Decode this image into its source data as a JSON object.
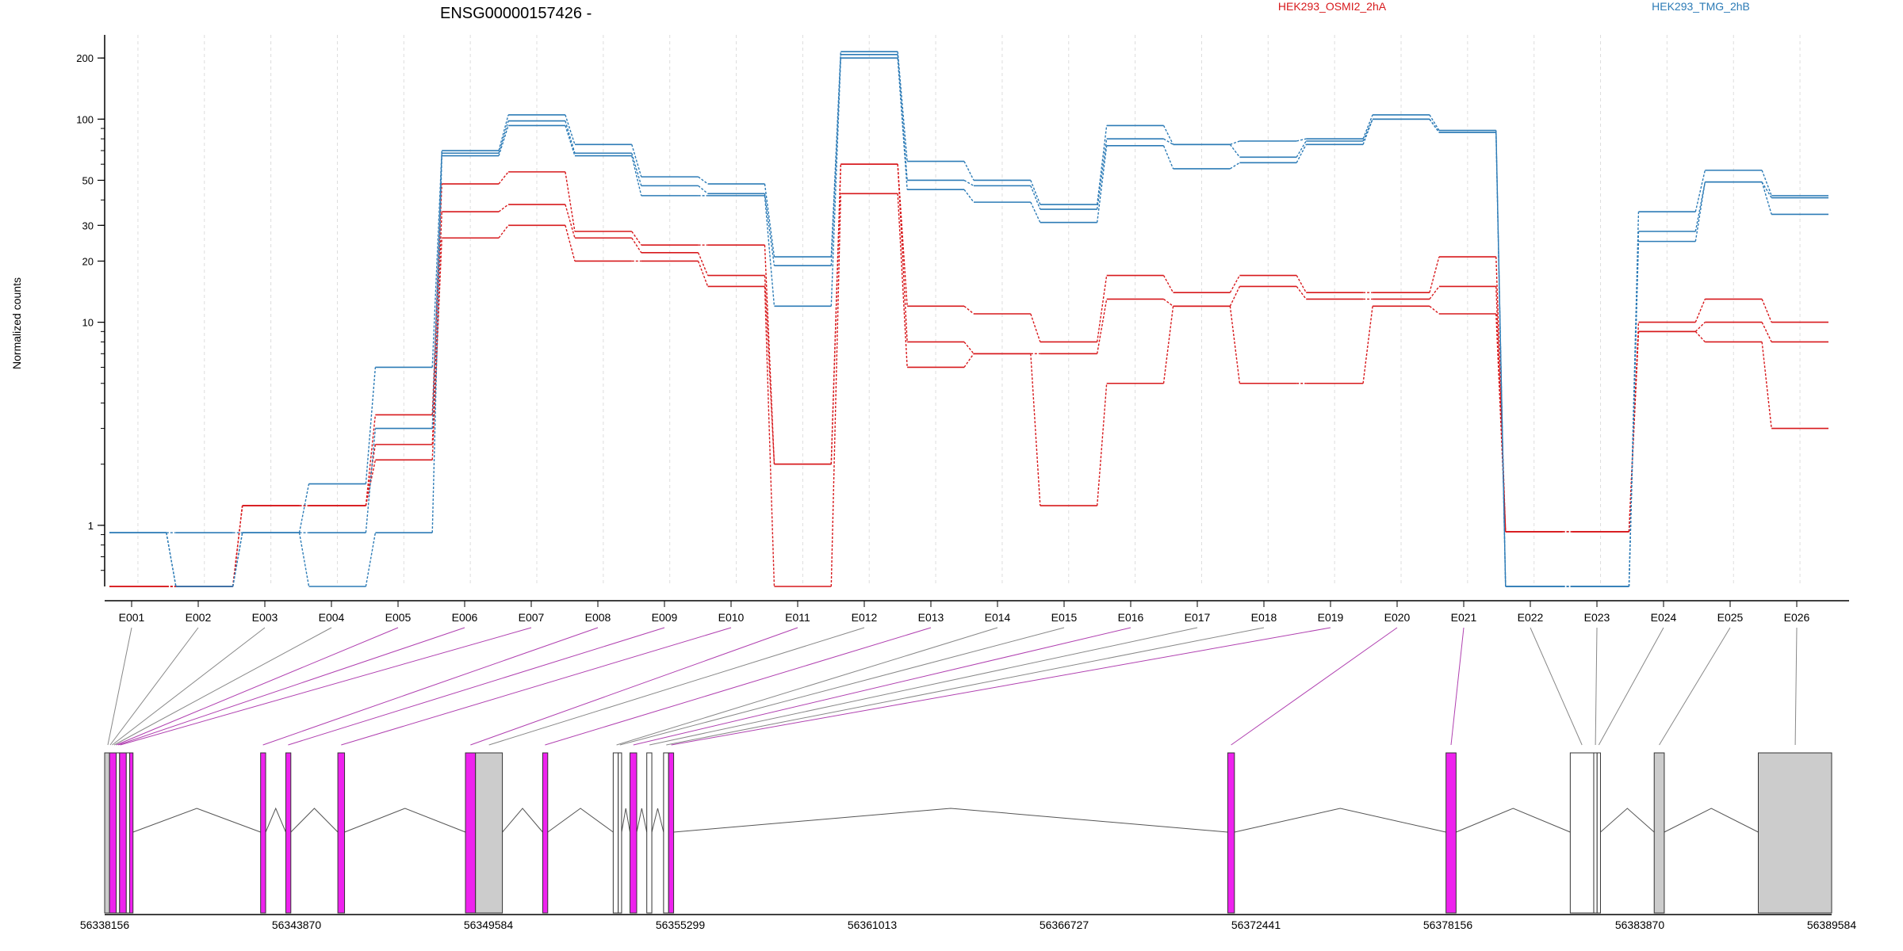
{
  "chart_data": {
    "type": "line",
    "title": "ENSG00000157426 -",
    "ylabel": "Normalized counts",
    "yscale": "log",
    "ylim": [
      0.5,
      260
    ],
    "yticks": [
      1,
      10,
      20,
      30,
      50,
      100,
      200
    ],
    "categories": [
      "E001",
      "E002",
      "E003",
      "E004",
      "E005",
      "E006",
      "E007",
      "E008",
      "E009",
      "E010",
      "E011",
      "E012",
      "E013",
      "E014",
      "E015",
      "E016",
      "E017",
      "E018",
      "E019",
      "E020",
      "E021",
      "E022",
      "E023",
      "E024",
      "E025",
      "E026"
    ],
    "legend": [
      {
        "name": "HEK293_OSMI2_2hA",
        "color": "#d7191c"
      },
      {
        "name": "HEK293_TMG_2hB",
        "color": "#2c7bb6"
      }
    ],
    "series": [
      {
        "group": "HEK293_OSMI2_2hA",
        "color": "#d7191c",
        "values": [
          0.5,
          0.5,
          1.25,
          1.25,
          3.5,
          48,
          55,
          28,
          24,
          24,
          2.0,
          60,
          12,
          11,
          8,
          17,
          14,
          17,
          14,
          14,
          21,
          0.93,
          0.93,
          10,
          13,
          10
        ]
      },
      {
        "group": "HEK293_OSMI2_2hA",
        "color": "#d7191c",
        "values": [
          0.5,
          0.5,
          1.25,
          1.25,
          2.5,
          35,
          38,
          26,
          22,
          17,
          2.0,
          60,
          8,
          7,
          7,
          13,
          12,
          15,
          13,
          13,
          15,
          0.93,
          0.93,
          9,
          10,
          8
        ]
      },
      {
        "group": "HEK293_OSMI2_2hA",
        "color": "#d7191c",
        "values": [
          0.5,
          0.5,
          1.25,
          1.25,
          2.1,
          26,
          30,
          20,
          20,
          15,
          0.5,
          43,
          6,
          7,
          1.25,
          5,
          12,
          5,
          5,
          12,
          11,
          0.93,
          0.93,
          9,
          8,
          3
        ]
      },
      {
        "group": "HEK293_TMG_2hB",
        "color": "#2c7bb6",
        "values": [
          0.92,
          0.5,
          0.92,
          1.6,
          6,
          70,
          105,
          75,
          52,
          48,
          21,
          215,
          62,
          50,
          38,
          93,
          75,
          78,
          80,
          105,
          88,
          0.5,
          0.5,
          35,
          56,
          42
        ]
      },
      {
        "group": "HEK293_TMG_2hB",
        "color": "#2c7bb6",
        "values": [
          0.92,
          0.5,
          0.92,
          0.92,
          3,
          68,
          98,
          68,
          47,
          43,
          19,
          208,
          50,
          47,
          36,
          80,
          75,
          65,
          78,
          100,
          86,
          0.5,
          0.5,
          28,
          49,
          41
        ]
      },
      {
        "group": "HEK293_TMG_2hB",
        "color": "#2c7bb6",
        "values": [
          0.92,
          0.92,
          0.92,
          0.5,
          0.92,
          66,
          93,
          66,
          42,
          42,
          12,
          200,
          45,
          39,
          31,
          74,
          57,
          61,
          75,
          100,
          86,
          0.5,
          0.5,
          25,
          49,
          34
        ]
      }
    ],
    "gene_model": {
      "coordinate_ticks": [
        "56338156",
        "56343870",
        "56349584",
        "56355299",
        "56361013",
        "56366727",
        "56372441",
        "56378156",
        "56383870",
        "56389584"
      ],
      "range": [
        56338156,
        56389584
      ],
      "exons": [
        {
          "start": 56338156,
          "end": 56338300,
          "type": "utr"
        },
        {
          "start": 56338300,
          "end": 56338500,
          "type": "highlighted"
        },
        {
          "start": 56338500,
          "end": 56338600,
          "type": "plain"
        },
        {
          "start": 56338600,
          "end": 56338800,
          "type": "highlighted"
        },
        {
          "start": 56338800,
          "end": 56338900,
          "type": "plain"
        },
        {
          "start": 56338900,
          "end": 56339000,
          "type": "highlighted"
        },
        {
          "start": 56342800,
          "end": 56342950,
          "type": "highlighted"
        },
        {
          "start": 56343550,
          "end": 56343700,
          "type": "highlighted"
        },
        {
          "start": 56345100,
          "end": 56345300,
          "type": "highlighted"
        },
        {
          "start": 56348900,
          "end": 56349200,
          "type": "highlighted"
        },
        {
          "start": 56349200,
          "end": 56350000,
          "type": "utr"
        },
        {
          "start": 56351200,
          "end": 56351350,
          "type": "highlighted"
        },
        {
          "start": 56353300,
          "end": 56353450,
          "type": "plain"
        },
        {
          "start": 56353450,
          "end": 56353550,
          "type": "plain"
        },
        {
          "start": 56353800,
          "end": 56354000,
          "type": "highlighted"
        },
        {
          "start": 56354300,
          "end": 56354450,
          "type": "plain"
        },
        {
          "start": 56354800,
          "end": 56354950,
          "type": "plain"
        },
        {
          "start": 56354950,
          "end": 56355100,
          "type": "highlighted"
        },
        {
          "start": 56371600,
          "end": 56371800,
          "type": "highlighted"
        },
        {
          "start": 56378100,
          "end": 56378400,
          "type": "highlighted"
        },
        {
          "start": 56381800,
          "end": 56382500,
          "type": "plain"
        },
        {
          "start": 56382500,
          "end": 56382600,
          "type": "plain"
        },
        {
          "start": 56382600,
          "end": 56382700,
          "type": "plain"
        },
        {
          "start": 56384300,
          "end": 56384600,
          "type": "utr"
        },
        {
          "start": 56387400,
          "end": 56389584,
          "type": "utr"
        }
      ],
      "exon_bin_map": [
        {
          "bin": "E001",
          "pos": 56338250,
          "highlighted": false
        },
        {
          "bin": "E002",
          "pos": 56338320,
          "highlighted": false
        },
        {
          "bin": "E003",
          "pos": 56338380,
          "highlighted": false
        },
        {
          "bin": "E004",
          "pos": 56338440,
          "highlighted": false
        },
        {
          "bin": "E005",
          "pos": 56338500,
          "highlighted": true
        },
        {
          "bin": "E006",
          "pos": 56338560,
          "highlighted": true
        },
        {
          "bin": "E007",
          "pos": 56338620,
          "highlighted": true
        },
        {
          "bin": "E008",
          "pos": 56342870,
          "highlighted": true
        },
        {
          "bin": "E009",
          "pos": 56343620,
          "highlighted": true
        },
        {
          "bin": "E010",
          "pos": 56345200,
          "highlighted": true
        },
        {
          "bin": "E011",
          "pos": 56349050,
          "highlighted": true
        },
        {
          "bin": "E012",
          "pos": 56349600,
          "highlighted": false
        },
        {
          "bin": "E013",
          "pos": 56351270,
          "highlighted": true
        },
        {
          "bin": "E014",
          "pos": 56353400,
          "highlighted": false
        },
        {
          "bin": "E015",
          "pos": 56353500,
          "highlighted": false
        },
        {
          "bin": "E016",
          "pos": 56353900,
          "highlighted": true
        },
        {
          "bin": "E017",
          "pos": 56354380,
          "highlighted": false
        },
        {
          "bin": "E018",
          "pos": 56354880,
          "highlighted": false
        },
        {
          "bin": "E019",
          "pos": 56355030,
          "highlighted": true
        },
        {
          "bin": "E020",
          "pos": 56371700,
          "highlighted": true
        },
        {
          "bin": "E021",
          "pos": 56378250,
          "highlighted": true
        },
        {
          "bin": "E022",
          "pos": 56382150,
          "highlighted": false
        },
        {
          "bin": "E023",
          "pos": 56382550,
          "highlighted": false
        },
        {
          "bin": "E024",
          "pos": 56382650,
          "highlighted": false
        },
        {
          "bin": "E025",
          "pos": 56384450,
          "highlighted": false
        },
        {
          "bin": "E026",
          "pos": 56388500,
          "highlighted": false
        }
      ]
    }
  },
  "colors": {
    "highlight": "#ee22ee",
    "utr": "#cccccc",
    "plain": "#ffffff",
    "outline": "#333333",
    "link_highlight": "#b040b0",
    "link_plain": "#888888",
    "grid": "#dddddd"
  }
}
